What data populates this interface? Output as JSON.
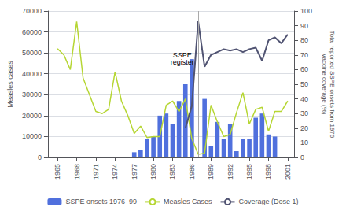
{
  "chart_data": {
    "type": "bar",
    "series": [
      {
        "name": "SSPE onsets 1976–99",
        "type": "bar",
        "x": [
          1976,
          1977,
          1978,
          1979,
          1980,
          1981,
          1982,
          1983,
          1984,
          1985,
          1986,
          1987,
          1988,
          1989,
          1990,
          1991,
          1992,
          1993,
          1994,
          1995,
          1996,
          1997,
          1998,
          1999
        ],
        "values": [
          0,
          2500,
          3500,
          9000,
          10000,
          20000,
          21000,
          16000,
          27000,
          35000,
          47000,
          0,
          28000,
          5500,
          17000,
          9000,
          16000,
          3000,
          9000,
          9000,
          19000,
          21000,
          11000,
          10000
        ]
      },
      {
        "name": "Measles Cases",
        "type": "line",
        "x": [
          1965,
          1966,
          1967,
          1968,
          1969,
          1970,
          1971,
          1972,
          1973,
          1974,
          1975,
          1976,
          1977,
          1978,
          1979,
          1980,
          1981,
          1982,
          1983,
          1984,
          1985,
          1986,
          1987,
          1988,
          1989,
          1990,
          1991,
          1992,
          1993,
          1994,
          1995,
          1996,
          1997,
          1998,
          1999,
          2000,
          2001
        ],
        "values": [
          52000,
          49000,
          42000,
          65000,
          38000,
          30000,
          22000,
          21000,
          23000,
          41000,
          27000,
          20000,
          11500,
          15000,
          9500,
          10000,
          10000,
          25000,
          27000,
          22000,
          28000,
          9000,
          1500,
          2000,
          25000,
          17000,
          10000,
          11000,
          21500,
          31000,
          16000,
          23000,
          24000,
          12500,
          22000,
          22000,
          27000
        ]
      },
      {
        "name": "Coverage (Dose 1)",
        "type": "line",
        "axis": "y2",
        "x": [
          1985,
          1986,
          1987,
          1988,
          1989,
          1990,
          1991,
          1992,
          1993,
          1994,
          1995,
          1996,
          1997,
          1998,
          1999,
          2000,
          2001
        ],
        "values": [
          20,
          35,
          93,
          62,
          70,
          72,
          74,
          73,
          74,
          72,
          74,
          75,
          66,
          80,
          82,
          78,
          84
        ]
      }
    ],
    "xlim": [
      1963.5,
      2002
    ],
    "xticks": [
      1965,
      1968,
      1971,
      1974,
      1977,
      1980,
      1983,
      1986,
      1989,
      1992,
      1995,
      1998,
      2001
    ],
    "ylim": [
      0,
      70000
    ],
    "yticks": [
      0,
      10000,
      20000,
      30000,
      40000,
      50000,
      60000,
      70000
    ],
    "y2lim": [
      0,
      100
    ],
    "y2ticks": [
      0,
      10,
      20,
      30,
      40,
      50,
      60,
      70,
      80,
      90,
      100
    ],
    "ylabel": "Measles cases",
    "y2label": "Total reported SSPE onsets from 1976\nvaccine coverage (%)",
    "annotations": [
      {
        "text": "SSPE\nregister",
        "x": 1984.5,
        "y": 44000
      }
    ],
    "vlines": [
      1987
    ],
    "grid": true,
    "legend": "bottom"
  }
}
